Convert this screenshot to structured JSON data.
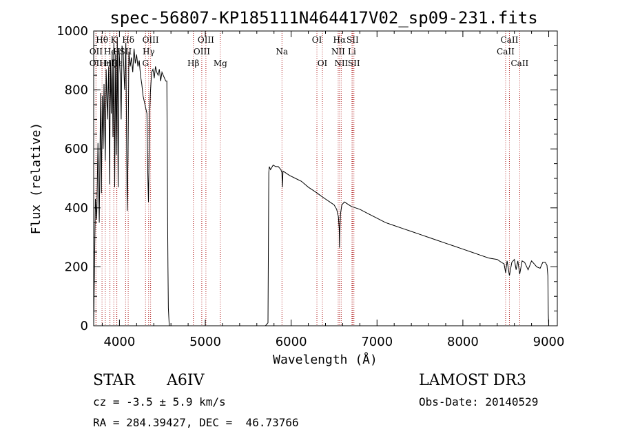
{
  "chart_data": {
    "type": "line",
    "title": "spec-56807-KP185111N464417V02_sp09-231.fits",
    "xlabel": "Wavelength (Å)",
    "ylabel": "Flux (relative)",
    "xlim": [
      3700,
      9100
    ],
    "ylim": [
      0,
      1000
    ],
    "xticks": [
      4000,
      5000,
      6000,
      7000,
      8000,
      9000
    ],
    "yticks": [
      0,
      200,
      400,
      600,
      800,
      1000
    ],
    "grid": false,
    "line_color": "#000000",
    "marker_color": "#b22222",
    "spectrum": {
      "name": "flux",
      "x": [
        3700,
        3720,
        3735,
        3750,
        3765,
        3780,
        3790,
        3800,
        3810,
        3820,
        3835,
        3845,
        3860,
        3875,
        3885,
        3895,
        3905,
        3915,
        3925,
        3935,
        3945,
        3955,
        3965,
        3975,
        3985,
        3995,
        4010,
        4020,
        4030,
        4045,
        4060,
        4075,
        4090,
        4100,
        4110,
        4125,
        4140,
        4155,
        4170,
        4185,
        4200,
        4215,
        4230,
        4245,
        4260,
        4275,
        4290,
        4305,
        4320,
        4330,
        4338,
        4342,
        4350,
        4360,
        4375,
        4390,
        4405,
        4420,
        4435,
        4450,
        4465,
        4480,
        4495,
        4510,
        4525,
        4540,
        4552,
        4560,
        4565,
        4570,
        4580,
        5700,
        5730,
        5740,
        5745,
        5760,
        5790,
        5820,
        5850,
        5880,
        5892,
        5898,
        5905,
        5930,
        5980,
        6050,
        6120,
        6200,
        6280,
        6350,
        6400,
        6450,
        6500,
        6530,
        6550,
        6560,
        6563,
        6566,
        6575,
        6590,
        6620,
        6700,
        6800,
        6900,
        7000,
        7100,
        7200,
        7300,
        7400,
        7500,
        7600,
        7700,
        7800,
        7900,
        8000,
        8100,
        8200,
        8300,
        8400,
        8450,
        8480,
        8498,
        8515,
        8542,
        8570,
        8600,
        8620,
        8640,
        8662,
        8690,
        8720,
        8760,
        8800,
        8830,
        8860,
        8900,
        8930,
        8960,
        8980,
        8990,
        8995,
        9000
      ],
      "y": [
        0,
        430,
        360,
        620,
        350,
        790,
        450,
        780,
        600,
        820,
        560,
        870,
        700,
        880,
        480,
        900,
        720,
        930,
        640,
        960,
        470,
        920,
        580,
        980,
        470,
        940,
        850,
        700,
        950,
        920,
        800,
        960,
        390,
        580,
        930,
        880,
        910,
        860,
        940,
        890,
        920,
        880,
        900,
        850,
        820,
        780,
        760,
        740,
        720,
        520,
        420,
        500,
        700,
        790,
        860,
        870,
        840,
        880,
        860,
        850,
        870,
        830,
        860,
        850,
        840,
        830,
        830,
        400,
        200,
        60,
        0,
        0,
        10,
        520,
        540,
        530,
        545,
        540,
        540,
        530,
        520,
        470,
        525,
        520,
        510,
        500,
        490,
        470,
        455,
        440,
        430,
        420,
        410,
        395,
        370,
        330,
        265,
        320,
        380,
        410,
        420,
        405,
        395,
        380,
        365,
        350,
        340,
        330,
        320,
        310,
        300,
        290,
        280,
        270,
        260,
        250,
        240,
        230,
        225,
        215,
        210,
        180,
        220,
        170,
        215,
        225,
        190,
        220,
        175,
        220,
        215,
        190,
        220,
        210,
        200,
        195,
        215,
        215,
        205,
        170,
        40,
        0
      ]
    },
    "lines": [
      {
        "label": "Hθ",
        "wl": 3797,
        "row": 0,
        "color": "#b22222"
      },
      {
        "label": "OII",
        "wl": 3727,
        "row": 1,
        "color": "#b22222"
      },
      {
        "label": "OII",
        "wl": 3727,
        "row": 2,
        "color": "#b22222"
      },
      {
        "label": "Hη",
        "wl": 3835,
        "row": 2,
        "color": "#b22222"
      },
      {
        "label": "He",
        "wl": 3889,
        "row": 1,
        "color": "#b22222"
      },
      {
        "label": "H",
        "wl": 3968,
        "row": 1,
        "color": "#b22222"
      },
      {
        "label": "K",
        "wl": 3934,
        "row": 0,
        "color": "#b22222"
      },
      {
        "label": "Hζ",
        "wl": 3889,
        "row": 2,
        "color": "#b22222"
      },
      {
        "label": "Hδ",
        "wl": 4102,
        "row": 0,
        "color": "#b22222"
      },
      {
        "label": "SII",
        "wl": 4072,
        "row": 1,
        "color": "#b22222"
      },
      {
        "label": "Hε",
        "wl": 3970,
        "row": 2,
        "color": "#b22222"
      },
      {
        "label": "OIII",
        "wl": 4363,
        "row": 0,
        "color": "#b22222"
      },
      {
        "label": "Hγ",
        "wl": 4340,
        "row": 1,
        "color": "#b22222"
      },
      {
        "label": "G",
        "wl": 4304,
        "row": 2,
        "color": "#b22222"
      },
      {
        "label": "OIII",
        "wl": 5007,
        "row": 0,
        "color": "#b22222"
      },
      {
        "label": "OIII",
        "wl": 4959,
        "row": 1,
        "color": "#b22222"
      },
      {
        "label": "Hβ",
        "wl": 4861,
        "row": 2,
        "color": "#b22222"
      },
      {
        "label": "Mg",
        "wl": 5175,
        "row": 2,
        "color": "#b22222"
      },
      {
        "label": "Na",
        "wl": 5893,
        "row": 1,
        "color": "#b22222"
      },
      {
        "label": "OI",
        "wl": 6300,
        "row": 0,
        "color": "#b22222"
      },
      {
        "label": "OI",
        "wl": 6364,
        "row": 2,
        "color": "#b22222"
      },
      {
        "label": "Hα",
        "wl": 6563,
        "row": 0,
        "color": "#b22222"
      },
      {
        "label": "SII",
        "wl": 6716,
        "row": 0,
        "color": "#b22222"
      },
      {
        "label": "NII",
        "wl": 6548,
        "row": 1,
        "color": "#b22222"
      },
      {
        "label": "Li",
        "wl": 6708,
        "row": 1,
        "color": "#b22222"
      },
      {
        "label": "NII",
        "wl": 6583,
        "row": 2,
        "color": "#b22222"
      },
      {
        "label": "SII",
        "wl": 6731,
        "row": 2,
        "color": "#b22222"
      },
      {
        "label": "CaII",
        "wl": 8542,
        "row": 0,
        "color": "#b22222"
      },
      {
        "label": "CaII",
        "wl": 8498,
        "row": 1,
        "color": "#b22222"
      },
      {
        "label": "CaII",
        "wl": 8662,
        "row": 2,
        "color": "#b22222"
      }
    ]
  },
  "info": {
    "obj_class": "STAR",
    "subclass": "A6IV",
    "survey": "LAMOST DR3",
    "cz": "cz = -3.5 ± 5.9 km/s",
    "obs_date": "Obs-Date: 20140529",
    "radec": "RA = 284.39427, DEC =  46.73766"
  }
}
